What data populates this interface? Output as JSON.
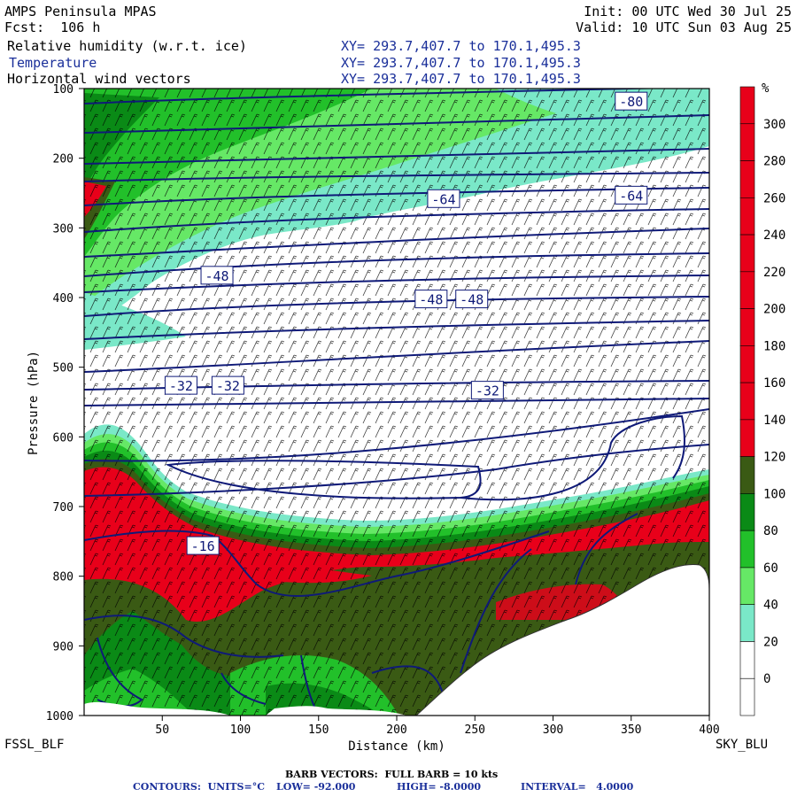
{
  "header": {
    "model": "AMPS Peninsula MPAS",
    "forecast": "Fcst:  106 h",
    "init": "Init: 00 UTC Wed 30 Jul 25",
    "valid": "Valid: 10 UTC Sun 03 Aug 25",
    "fields": [
      {
        "label": "Relative humidity (w.r.t. ice)",
        "xy": "XY= 293.7,407.7 to 170.1,495.3"
      },
      {
        "label": "Temperature",
        "xy": "XY= 293.7,407.7 to 170.1,495.3"
      },
      {
        "label": "Horizontal wind vectors",
        "xy": "XY= 293.7,407.7 to 170.1,495.3"
      }
    ]
  },
  "chart_data": {
    "type": "heatmap",
    "xlabel": "Distance (km)",
    "ylabel": "Pressure (hPa)",
    "xlim": [
      0,
      400
    ],
    "ylim": [
      1000,
      100
    ],
    "x_ticks": [
      50,
      100,
      150,
      200,
      250,
      300,
      350,
      400
    ],
    "y_ticks": [
      100,
      200,
      300,
      400,
      500,
      600,
      700,
      800,
      900,
      1000
    ],
    "left_endpoint": "FSSL_BLF",
    "right_endpoint": "SKY_BLU",
    "colorbar": {
      "unit": "%",
      "levels": [
        300,
        280,
        260,
        240,
        220,
        200,
        180,
        160,
        140,
        120,
        100,
        80,
        60,
        40,
        20,
        0
      ],
      "colors": [
        "#e8001a",
        "#e8001a",
        "#e8001a",
        "#e8001a",
        "#e8001a",
        "#e8001a",
        "#e8001a",
        "#e8001a",
        "#e8001a",
        "#e8001a",
        "#3a5a14",
        "#0a8a16",
        "#22c02a",
        "#66e866",
        "#7ae8c8",
        "#ffffff",
        "#ffffff"
      ]
    },
    "temperature_contour_labels": [
      {
        "label": "-80",
        "x": 350,
        "p": 118
      },
      {
        "label": "-64",
        "x": 230,
        "p": 258
      },
      {
        "label": "-64",
        "x": 350,
        "p": 253
      },
      {
        "label": "-48",
        "x": 85,
        "p": 368
      },
      {
        "label": "-48",
        "x": 222,
        "p": 402
      },
      {
        "label": "-48",
        "x": 248,
        "p": 402
      },
      {
        "label": "-32",
        "x": 62,
        "p": 526
      },
      {
        "label": "-32",
        "x": 92,
        "p": 526
      },
      {
        "label": "-32",
        "x": 258,
        "p": 533
      },
      {
        "label": "-16",
        "x": 76,
        "p": 756
      }
    ],
    "barb_vectors": "BARB VECTORS:  FULL BARB = 10 kts",
    "contours": {
      "units": "CONTOURS:  UNITS=°C",
      "low": "LOW= -92.000",
      "high": "HIGH= -8.0000",
      "interval": "INTERVAL=   4.0000"
    }
  }
}
